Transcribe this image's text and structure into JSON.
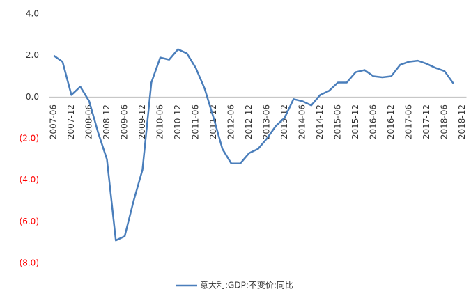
{
  "chart_data": {
    "type": "line",
    "categories": [
      "2007-06",
      null,
      "2007-12",
      null,
      "2008-06",
      null,
      "2008-12",
      null,
      "2009-06",
      null,
      "2009-12",
      null,
      "2010-06",
      null,
      "2010-12",
      null,
      "2011-06",
      null,
      "2011-12",
      null,
      "2012-06",
      null,
      "2012-12",
      null,
      "2013-06",
      null,
      "2013-12",
      null,
      "2014-06",
      null,
      "2014-12",
      null,
      "2015-06",
      null,
      "2015-12",
      null,
      "2016-06",
      null,
      "2016-12",
      null,
      "2017-06",
      null,
      "2017-12",
      null,
      "2018-06",
      null,
      "2018-12"
    ],
    "series": [
      {
        "name": "意大利:GDP:不变价:同比",
        "color": "#4a7ebb",
        "values": [
          2.0,
          1.7,
          0.1,
          0.5,
          -0.2,
          -1.7,
          -3.0,
          -6.9,
          -6.7,
          -5.0,
          -3.5,
          0.7,
          1.9,
          1.8,
          2.3,
          2.1,
          1.4,
          0.4,
          -1.0,
          -2.5,
          -3.2,
          -3.2,
          -2.7,
          -2.5,
          -2.0,
          -1.4,
          -1.0,
          -0.1,
          -0.2,
          -0.4,
          0.1,
          0.3,
          0.7,
          0.7,
          1.2,
          1.3,
          1.0,
          0.95,
          1.0,
          1.55,
          1.7,
          1.75,
          1.6,
          1.4,
          1.25,
          0.65,
          null
        ]
      }
    ],
    "ylim": [
      -8,
      4
    ],
    "yticks": [
      {
        "value": 4,
        "label": "4.0"
      },
      {
        "value": 2,
        "label": "2.0"
      },
      {
        "value": 0,
        "label": "0.0"
      },
      {
        "value": -2,
        "label": "(2.0)"
      },
      {
        "value": -4,
        "label": "(4.0)"
      },
      {
        "value": -6,
        "label": "(6.0)"
      },
      {
        "value": -8,
        "label": "(8.0)"
      }
    ],
    "negative_tick_color": "#ff0000",
    "legend": "bottom"
  }
}
